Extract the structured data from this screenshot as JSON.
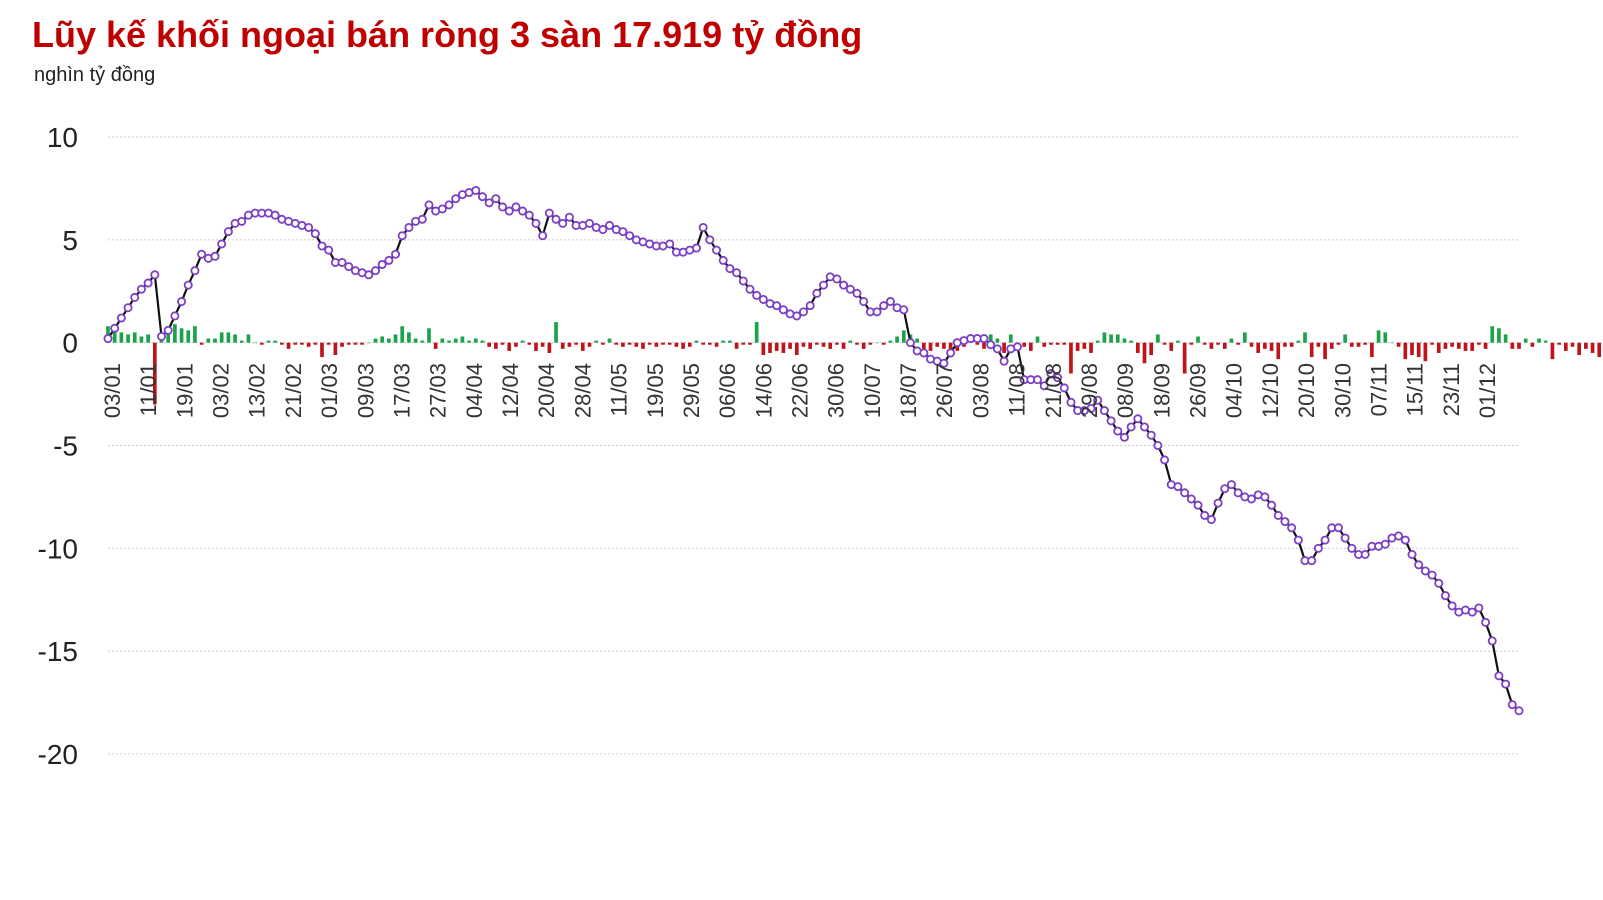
{
  "title": "Lũy kế khối ngoại bán ròng 3 sàn 17.919 tỷ đồng",
  "unit": "nghìn tỷ đồng",
  "colors": {
    "title": "#c00000",
    "line": "#111111",
    "marker_fill": "#ffffff",
    "marker_stroke": "#7b3fc4",
    "buy": "#1aa34a",
    "sell": "#c0141b",
    "grid": "#cccccc"
  },
  "chart_data": {
    "type": "line",
    "title": "Lũy kế khối ngoại bán ròng 3 sàn 17.919 tỷ đồng",
    "ylabel": "nghìn tỷ đồng",
    "ylim": [
      -20,
      10
    ],
    "yticks": [
      "10",
      "5",
      "0",
      "-5",
      "-10",
      "-15",
      "-20"
    ],
    "xticks": [
      "03/01",
      "11/01",
      "19/01",
      "03/02",
      "13/02",
      "21/02",
      "01/03",
      "09/03",
      "17/03",
      "27/03",
      "04/04",
      "12/04",
      "20/04",
      "28/04",
      "11/05",
      "19/05",
      "29/05",
      "06/06",
      "14/06",
      "22/06",
      "30/06",
      "10/07",
      "18/07",
      "26/07",
      "03/08",
      "11/08",
      "21/08",
      "29/08",
      "08/09",
      "18/09",
      "26/09",
      "04/10",
      "12/10",
      "20/10",
      "30/10",
      "07/11",
      "15/11",
      "23/11",
      "01/12"
    ],
    "grid": true,
    "series": [
      {
        "kind": "bar",
        "values": [
          0.8,
          0.5,
          0.5,
          0.4,
          0.5,
          0.3,
          0.4,
          -3.0,
          0.5,
          0.8,
          0.9,
          0.7,
          0.6,
          0.8,
          -0.1,
          0.2,
          0.2,
          0.5,
          0.5,
          0.4,
          0.1,
          0.4,
          0.0,
          -0.1,
          0.1,
          0.1,
          -0.1,
          -0.3,
          -0.1,
          -0.1,
          -0.2,
          -0.1,
          -0.7,
          -0.1,
          -0.6,
          -0.2,
          -0.1,
          -0.1,
          -0.1,
          0.0,
          0.2,
          0.3,
          0.2,
          0.4,
          0.8,
          0.5,
          0.2,
          0.1,
          0.7,
          -0.3,
          0.2,
          0.1,
          0.2,
          0.3,
          0.1,
          0.2,
          0.1,
          -0.2,
          -0.3,
          -0.1,
          -0.4,
          -0.2,
          0.1,
          -0.1,
          -0.4,
          -0.2,
          -0.5,
          1.0,
          -0.3,
          -0.2,
          -0.1,
          -0.4,
          -0.2,
          0.1,
          -0.1,
          0.2,
          -0.1,
          -0.2,
          -0.1,
          -0.2,
          -0.3,
          -0.1,
          -0.2,
          -0.1,
          -0.1,
          -0.2,
          -0.3,
          -0.2,
          0.1,
          -0.1,
          -0.1,
          -0.2,
          0.1,
          0.1,
          -0.3,
          -0.1,
          -0.1,
          1.0,
          -0.6,
          -0.5,
          -0.4,
          -0.5,
          -0.3,
          -0.6,
          -0.2,
          -0.3,
          -0.1,
          -0.2,
          -0.3,
          -0.1,
          -0.3,
          0.1,
          -0.1,
          -0.3,
          -0.1,
          0.0,
          -0.1,
          0.1,
          0.3,
          0.6,
          0.4,
          0.2,
          -0.5,
          -0.4,
          -0.2,
          -0.3,
          -0.5,
          -0.4,
          -0.2,
          0.1,
          -0.1,
          -0.3,
          0.4,
          0.2,
          -0.5,
          0.4,
          -0.4,
          -0.2,
          -0.4,
          0.3,
          -0.2,
          -0.1,
          -0.1,
          -0.1,
          -1.5,
          -0.4,
          -0.3,
          -0.5,
          0.1,
          0.5,
          0.4,
          0.4,
          0.2,
          0.1,
          -0.5,
          -1.0,
          -0.6,
          0.4,
          -0.1,
          -0.4,
          0.1,
          -1.5,
          -0.1,
          0.3,
          -0.1,
          -0.3,
          -0.1,
          -0.3,
          0.2,
          -0.1,
          0.5,
          -0.2,
          -0.5,
          -0.3,
          -0.4,
          -0.8,
          -0.2,
          -0.2,
          0.1,
          0.5,
          -0.7,
          -0.2,
          -0.8,
          -0.3,
          -0.1,
          0.4,
          -0.2,
          -0.2,
          -0.1,
          -0.7,
          0.6,
          0.5,
          0.0,
          -0.2,
          -0.8,
          -0.6,
          -0.7,
          -0.9,
          -0.1,
          -0.5,
          -0.3,
          -0.2,
          -0.3,
          -0.4,
          -0.4,
          -0.1,
          -0.3,
          0.8,
          0.7,
          0.4,
          -0.3,
          -0.3,
          0.2,
          -0.2,
          0.2,
          0.1,
          -0.8,
          -0.1,
          -0.4,
          -0.2,
          -0.6,
          -0.3,
          -0.5,
          -0.7,
          -0.1,
          0.1,
          -0.2,
          0.5,
          0.4,
          0.8,
          -0.3,
          -0.5,
          -0.2,
          -0.1,
          -0.5,
          -0.2,
          -0.1,
          0.3,
          -0.1,
          0.2,
          0.1,
          0.5,
          -0.4,
          -0.3,
          -0.7,
          -0.4,
          -0.2,
          -0.3,
          -0.4,
          -0.3,
          0.1,
          -0.7,
          0.4,
          -0.6,
          -0.4,
          -0.8,
          -0.3,
          0.4,
          -0.2,
          0.1,
          -0.1,
          -0.1,
          -0.7,
          -0.4,
          -1.5,
          -0.5,
          -0.9
        ]
      },
      {
        "kind": "line",
        "values": [
          0.2,
          0.7,
          1.2,
          1.7,
          2.2,
          2.6,
          2.9,
          3.3,
          0.3,
          0.6,
          1.3,
          2.0,
          2.8,
          3.5,
          4.3,
          4.1,
          4.2,
          4.8,
          5.4,
          5.8,
          5.9,
          6.2,
          6.3,
          6.3,
          6.3,
          6.2,
          6.0,
          5.9,
          5.8,
          5.7,
          5.6,
          5.3,
          4.7,
          4.5,
          3.9,
          3.9,
          3.7,
          3.5,
          3.4,
          3.3,
          3.5,
          3.8,
          4.0,
          4.3,
          5.2,
          5.6,
          5.9,
          6.0,
          6.7,
          6.4,
          6.5,
          6.7,
          7.0,
          7.2,
          7.3,
          7.4,
          7.1,
          6.8,
          7.0,
          6.6,
          6.4,
          6.6,
          6.4,
          6.2,
          5.8,
          5.2,
          6.3,
          6.0,
          5.8,
          6.1,
          5.7,
          5.7,
          5.8,
          5.6,
          5.5,
          5.7,
          5.5,
          5.4,
          5.2,
          5.0,
          4.9,
          4.8,
          4.7,
          4.7,
          4.8,
          4.4,
          4.4,
          4.5,
          4.6,
          5.6,
          5.0,
          4.5,
          4.0,
          3.6,
          3.4,
          3.0,
          2.6,
          2.3,
          2.1,
          1.9,
          1.8,
          1.6,
          1.4,
          1.3,
          1.5,
          1.8,
          2.4,
          2.8,
          3.2,
          3.1,
          2.8,
          2.6,
          2.4,
          2.0,
          1.5,
          1.5,
          1.8,
          2.0,
          1.7,
          1.6,
          0.0,
          -0.4,
          -0.5,
          -0.8,
          -0.9,
          -1.0,
          -0.5,
          0.0,
          0.1,
          0.2,
          0.2,
          0.2,
          -0.1,
          -0.3,
          -0.9,
          -0.3,
          -0.2,
          -1.8,
          -1.8,
          -1.8,
          -2.1,
          -1.5,
          -1.7,
          -2.2,
          -2.9,
          -3.3,
          -3.3,
          -3.2,
          -2.8,
          -3.3,
          -3.8,
          -4.3,
          -4.6,
          -4.1,
          -3.7,
          -4.1,
          -4.5,
          -5.0,
          -5.7,
          -6.9,
          -7.0,
          -7.3,
          -7.6,
          -7.9,
          -8.4,
          -8.6,
          -7.8,
          -7.1,
          -6.9,
          -7.3,
          -7.5,
          -7.6,
          -7.4,
          -7.5,
          -7.9,
          -8.4,
          -8.7,
          -9.0,
          -9.6,
          -10.6,
          -10.6,
          -10.0,
          -9.6,
          -9.0,
          -9.0,
          -9.5,
          -10.0,
          -10.3,
          -10.3,
          -9.9,
          -9.9,
          -9.8,
          -9.5,
          -9.4,
          -9.6,
          -10.3,
          -10.8,
          -11.1,
          -11.3,
          -11.7,
          -12.3,
          -12.8,
          -13.1,
          -13.0,
          -13.1,
          -12.9,
          -13.6,
          -14.5,
          -16.2,
          -16.6,
          -17.6,
          -17.9
        ]
      }
    ]
  }
}
